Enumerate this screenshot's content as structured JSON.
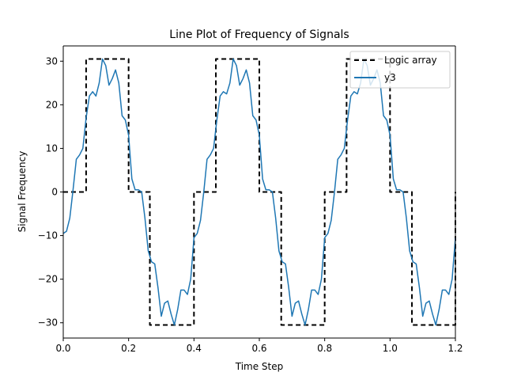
{
  "chart_data": {
    "type": "line",
    "title": "Line Plot of Frequency of Signals",
    "xlabel": "Time Step",
    "ylabel": "Signal Frequency",
    "xlim": [
      0.0,
      1.2
    ],
    "ylim": [
      -33.5,
      33.5
    ],
    "xticks": [
      "0.0",
      "0.2",
      "0.4",
      "0.6",
      "0.8",
      "1.0",
      "1.2"
    ],
    "yticks": [
      "−30",
      "−20",
      "−10",
      "0",
      "10",
      "20",
      "30"
    ],
    "grid": false,
    "legend_position": "upper right",
    "colors": {
      "logic": "#000000",
      "y3": "#1f77b4"
    },
    "series": [
      {
        "name": "Logic array",
        "style": "dashed step",
        "points": [
          [
            0.0,
            0
          ],
          [
            0.07,
            0
          ],
          [
            0.07,
            30.5
          ],
          [
            0.2,
            30.5
          ],
          [
            0.2,
            0
          ],
          [
            0.265,
            0
          ],
          [
            0.265,
            -30.5
          ],
          [
            0.4,
            -30.5
          ],
          [
            0.4,
            0
          ],
          [
            0.467,
            0
          ],
          [
            0.467,
            30.5
          ],
          [
            0.6,
            30.5
          ],
          [
            0.6,
            0
          ],
          [
            0.667,
            0
          ],
          [
            0.667,
            -30.5
          ],
          [
            0.8,
            -30.5
          ],
          [
            0.8,
            0
          ],
          [
            0.867,
            0
          ],
          [
            0.867,
            30.5
          ],
          [
            1.0,
            30.5
          ],
          [
            1.0,
            0
          ],
          [
            1.067,
            0
          ],
          [
            1.067,
            -30.5
          ],
          [
            1.2,
            -30.5
          ],
          [
            1.2,
            0
          ]
        ]
      },
      {
        "name": "y3",
        "style": "solid",
        "points": [
          [
            0.0,
            -9.5
          ],
          [
            0.01,
            -9.0
          ],
          [
            0.02,
            -6.0
          ],
          [
            0.03,
            0.5
          ],
          [
            0.04,
            7.5
          ],
          [
            0.05,
            8.5
          ],
          [
            0.06,
            10.0
          ],
          [
            0.07,
            17.0
          ],
          [
            0.08,
            22.0
          ],
          [
            0.09,
            23.0
          ],
          [
            0.1,
            22.0
          ],
          [
            0.11,
            25.0
          ],
          [
            0.12,
            30.5
          ],
          [
            0.13,
            29.0
          ],
          [
            0.14,
            24.5
          ],
          [
            0.15,
            26.0
          ],
          [
            0.16,
            28.0
          ],
          [
            0.17,
            25.0
          ],
          [
            0.18,
            17.5
          ],
          [
            0.19,
            16.5
          ],
          [
            0.2,
            13.0
          ],
          [
            0.21,
            3.0
          ],
          [
            0.22,
            0.5
          ],
          [
            0.23,
            0.5
          ],
          [
            0.24,
            0.0
          ],
          [
            0.25,
            -6.0
          ],
          [
            0.26,
            -13.5
          ],
          [
            0.27,
            -16.0
          ],
          [
            0.28,
            -16.5
          ],
          [
            0.29,
            -22.0
          ],
          [
            0.3,
            -28.5
          ],
          [
            0.31,
            -25.5
          ],
          [
            0.32,
            -25.0
          ],
          [
            0.33,
            -28.0
          ],
          [
            0.34,
            -30.5
          ],
          [
            0.35,
            -27.0
          ],
          [
            0.36,
            -22.5
          ],
          [
            0.37,
            -22.5
          ],
          [
            0.38,
            -23.5
          ],
          [
            0.39,
            -20.0
          ],
          [
            0.4,
            -10.5
          ],
          [
            0.41,
            -9.5
          ],
          [
            0.42,
            -6.5
          ],
          [
            0.43,
            0.0
          ],
          [
            0.44,
            7.5
          ],
          [
            0.45,
            8.5
          ],
          [
            0.46,
            10.0
          ],
          [
            0.47,
            16.5
          ],
          [
            0.48,
            22.0
          ],
          [
            0.49,
            23.0
          ],
          [
            0.5,
            22.5
          ],
          [
            0.51,
            25.0
          ],
          [
            0.52,
            30.5
          ],
          [
            0.53,
            29.0
          ],
          [
            0.54,
            24.5
          ],
          [
            0.55,
            26.0
          ],
          [
            0.56,
            28.0
          ],
          [
            0.57,
            25.0
          ],
          [
            0.58,
            17.5
          ],
          [
            0.59,
            16.5
          ],
          [
            0.6,
            13.0
          ],
          [
            0.61,
            3.0
          ],
          [
            0.62,
            0.5
          ],
          [
            0.63,
            0.5
          ],
          [
            0.64,
            0.0
          ],
          [
            0.65,
            -6.0
          ],
          [
            0.66,
            -13.5
          ],
          [
            0.67,
            -16.0
          ],
          [
            0.68,
            -16.5
          ],
          [
            0.69,
            -22.0
          ],
          [
            0.7,
            -28.5
          ],
          [
            0.71,
            -25.5
          ],
          [
            0.72,
            -25.0
          ],
          [
            0.73,
            -28.0
          ],
          [
            0.74,
            -30.5
          ],
          [
            0.75,
            -27.0
          ],
          [
            0.76,
            -22.5
          ],
          [
            0.77,
            -22.5
          ],
          [
            0.78,
            -23.5
          ],
          [
            0.79,
            -20.0
          ],
          [
            0.8,
            -10.5
          ],
          [
            0.81,
            -9.5
          ],
          [
            0.82,
            -6.5
          ],
          [
            0.83,
            0.0
          ],
          [
            0.84,
            7.5
          ],
          [
            0.85,
            8.5
          ],
          [
            0.86,
            10.0
          ],
          [
            0.87,
            16.5
          ],
          [
            0.88,
            22.0
          ],
          [
            0.89,
            23.0
          ],
          [
            0.9,
            22.5
          ],
          [
            0.91,
            25.0
          ],
          [
            0.92,
            30.5
          ],
          [
            0.93,
            29.0
          ],
          [
            0.94,
            24.5
          ],
          [
            0.95,
            26.0
          ],
          [
            0.96,
            28.0
          ],
          [
            0.97,
            25.0
          ],
          [
            0.98,
            17.5
          ],
          [
            0.99,
            16.5
          ],
          [
            1.0,
            13.0
          ],
          [
            1.01,
            3.0
          ],
          [
            1.02,
            0.5
          ],
          [
            1.03,
            0.5
          ],
          [
            1.04,
            0.0
          ],
          [
            1.05,
            -6.0
          ],
          [
            1.06,
            -13.5
          ],
          [
            1.07,
            -16.0
          ],
          [
            1.08,
            -16.5
          ],
          [
            1.09,
            -22.0
          ],
          [
            1.1,
            -28.5
          ],
          [
            1.11,
            -25.5
          ],
          [
            1.12,
            -25.0
          ],
          [
            1.13,
            -28.0
          ],
          [
            1.14,
            -30.5
          ],
          [
            1.15,
            -27.0
          ],
          [
            1.16,
            -22.5
          ],
          [
            1.17,
            -22.5
          ],
          [
            1.18,
            -23.5
          ],
          [
            1.19,
            -20.0
          ],
          [
            1.2,
            -10.5
          ]
        ]
      }
    ]
  }
}
